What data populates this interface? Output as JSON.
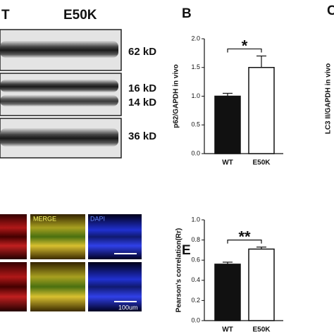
{
  "blot": {
    "lanes": [
      "T",
      "E50K"
    ],
    "markers": [
      "62 kD",
      "16 kD",
      "14 kD",
      "36 kD"
    ]
  },
  "panel_letters": [
    "B",
    "C",
    "E"
  ],
  "panel_c": {
    "ylabel": "LC3 II/GAPDH in vivo"
  },
  "micrograph": {
    "channels": [
      "MERGE",
      "DAPI"
    ],
    "scale": "100um"
  },
  "chart_data": [
    {
      "type": "bar",
      "ylabel": "p62/GAPDH in vivo",
      "categories": [
        "WT",
        "E50K"
      ],
      "values": [
        1.0,
        1.5
      ],
      "errors": [
        0.05,
        0.2
      ],
      "colors": [
        "#111111",
        "#ffffff"
      ],
      "ylim": [
        0,
        2
      ],
      "yticks": [
        {
          "value": 0,
          "label": "0.0"
        },
        0.5,
        {
          "value": 1,
          "label": "1.0"
        },
        1.5,
        {
          "value": 2,
          "label": "2.0"
        }
      ],
      "annotation": "*"
    },
    {
      "type": "bar",
      "ylabel": "Pearson's correlation(Rr)",
      "categories": [
        "WT",
        "E50K"
      ],
      "values": [
        0.56,
        0.71
      ],
      "errors": [
        0.02,
        0.02
      ],
      "colors": [
        "#111111",
        "#ffffff"
      ],
      "ylim": [
        0,
        1
      ],
      "yticks": [
        {
          "value": 0,
          "label": "0.0"
        },
        0.2,
        0.4,
        0.6,
        0.8,
        {
          "value": 1,
          "label": "1.0"
        }
      ],
      "annotation": "**"
    }
  ]
}
